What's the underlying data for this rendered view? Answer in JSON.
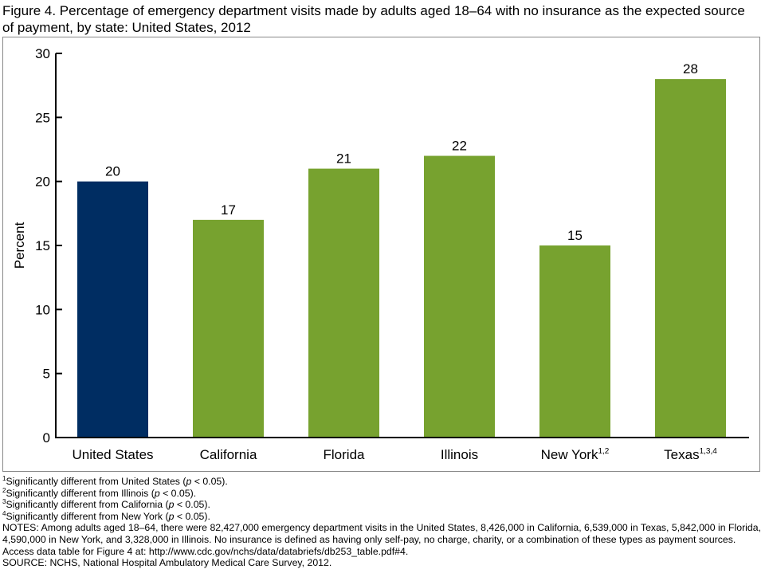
{
  "title": "Figure 4. Percentage of emergency department visits made by adults aged 18–64 with no insurance as the expected source of payment, by state: United States, 2012",
  "chart_data": {
    "type": "bar",
    "categories": [
      "United States",
      "California",
      "Florida",
      "Illinois",
      "New York",
      "Texas"
    ],
    "category_superscripts": [
      "",
      "",
      "",
      "",
      "1,2",
      "1,3,4"
    ],
    "values": [
      20,
      17,
      21,
      22,
      15,
      28
    ],
    "data_labels": [
      "20",
      "17",
      "21",
      "22",
      "15",
      "28"
    ],
    "colors": [
      "#002d62",
      "#77a22f",
      "#77a22f",
      "#77a22f",
      "#77a22f",
      "#77a22f"
    ],
    "xlabel": "",
    "ylabel": "Percent",
    "ylim": [
      0,
      30
    ],
    "yticks": [
      0,
      5,
      10,
      15,
      20,
      25,
      30
    ],
    "grid": false,
    "legend": "none"
  },
  "footnotes": [
    {
      "mark": "1",
      "text": "Significantly different from United States (",
      "p": "p",
      "tail": " < 0.05)."
    },
    {
      "mark": "2",
      "text": "Significantly different from Illinois (",
      "p": "p",
      "tail": " < 0.05)."
    },
    {
      "mark": "3",
      "text": "Significantly different from California (",
      "p": "p",
      "tail": " < 0.05)."
    },
    {
      "mark": "4",
      "text": "Significantly different from New York (",
      "p": "p",
      "tail": " < 0.05)."
    }
  ],
  "notes": "NOTES: Among adults aged 18–64, there were 82,427,000 emergency department visits in the United States, 8,426,000 in California, 6,539,000 in Texas, 5,842,000 in Florida, 4,590,000 in New York, and 3,328,000 in Illinois. No insurance is defined as having only self-pay, no charge, charity, or a combination of these types as payment sources. Access data table for Figure 4 at: http://www.cdc.gov/nchs/data/databriefs/db253_table.pdf#4.",
  "source": "SOURCE: NCHS, National Hospital Ambulatory Medical Care Survey, 2012."
}
